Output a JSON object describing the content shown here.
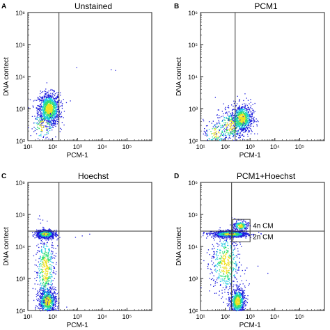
{
  "colors": {
    "low_density": "#1a1adc",
    "mid_density": "#18c8e0",
    "high_density": "#30e070",
    "peak_density": "#f0e020",
    "frame": "#222222",
    "gate_line": "#333333"
  },
  "chart_data": [
    {
      "type": "scatter",
      "panel_label": "A",
      "title": "Unstained",
      "xlabel": "PCM-1",
      "ylabel": "DNA contect",
      "x_scale": "log",
      "y_scale": "log",
      "xlim": [
        10,
        1000000
      ],
      "ylim": [
        100,
        1000000
      ],
      "xticks": [
        "10¹",
        "10²",
        "10³",
        "10⁴",
        "10⁵"
      ],
      "yticks": [
        "10²",
        "10³",
        "10⁴",
        "10⁵",
        "10⁶"
      ],
      "gate_x": 180,
      "gate_y": null,
      "populations": [
        {
          "center": [
            70,
            1000
          ],
          "spread": [
            0.22,
            0.25
          ],
          "count": 1100
        },
        {
          "center": [
            40,
            300
          ],
          "spread": [
            0.25,
            0.25
          ],
          "count": 120
        }
      ],
      "sparse_points": [
        [
          500,
          1800
        ],
        [
          900,
          20000
        ],
        [
          22000,
          17000
        ],
        [
          33000,
          16000
        ]
      ],
      "annotations": []
    },
    {
      "type": "scatter",
      "panel_label": "B",
      "title": "PCM1",
      "xlabel": "PCM-1",
      "ylabel": "DNA contect",
      "x_scale": "log",
      "y_scale": "log",
      "xlim": [
        10,
        1000000
      ],
      "ylim": [
        100,
        1000000
      ],
      "xticks": [
        "10¹",
        "10²",
        "10³",
        "10⁴",
        "10⁵"
      ],
      "yticks": [
        "10²",
        "10³",
        "10⁴",
        "10⁵",
        "10⁶"
      ],
      "gate_x": 250,
      "gate_y": null,
      "populations": [
        {
          "center": [
            450,
            500
          ],
          "spread": [
            0.22,
            0.22
          ],
          "count": 800
        },
        {
          "center": [
            150,
            300
          ],
          "spread": [
            0.3,
            0.25
          ],
          "count": 250
        },
        {
          "center": [
            40,
            180
          ],
          "spread": [
            0.25,
            0.2
          ],
          "count": 120
        }
      ],
      "sparse_points": [
        [
          300,
          2500
        ],
        [
          600,
          3000
        ],
        [
          1500,
          1500
        ]
      ],
      "annotations": []
    },
    {
      "type": "scatter",
      "panel_label": "C",
      "title": "Hoechst",
      "xlabel": "PCM-1",
      "ylabel": "DNA contect",
      "x_scale": "log",
      "y_scale": "log",
      "xlim": [
        10,
        1000000
      ],
      "ylim": [
        100,
        1000000
      ],
      "xticks": [
        "10¹",
        "10²",
        "10³",
        "10⁴",
        "10⁵"
      ],
      "yticks": [
        "10²",
        "10³",
        "10⁴",
        "10⁵",
        "10⁶"
      ],
      "gate_x": 180,
      "gate_y": 30000,
      "populations": [
        {
          "center": [
            50,
            25000
          ],
          "spread": [
            0.18,
            0.06
          ],
          "count": 900
        },
        {
          "center": [
            60,
            200
          ],
          "spread": [
            0.18,
            0.2
          ],
          "count": 700
        },
        {
          "center": [
            50,
            2000
          ],
          "spread": [
            0.2,
            0.55
          ],
          "count": 500
        }
      ],
      "sparse_points": [
        [
          800,
          20000
        ],
        [
          1500,
          22000
        ],
        [
          3000,
          25000
        ]
      ],
      "annotations": []
    },
    {
      "type": "scatter",
      "panel_label": "D",
      "title": "PCM1+Hoechst",
      "xlabel": "PCM-1",
      "ylabel": "DNA contect",
      "x_scale": "log",
      "y_scale": "log",
      "xlim": [
        10,
        1000000
      ],
      "ylim": [
        100,
        1000000
      ],
      "xticks": [
        "10¹",
        "10²",
        "10³",
        "10⁴",
        "10⁵"
      ],
      "yticks": [
        "10²",
        "10³",
        "10⁴",
        "10⁵",
        "10⁶"
      ],
      "gate_x": 180,
      "gate_y": 30000,
      "populations": [
        {
          "center": [
            150,
            25000
          ],
          "spread": [
            0.35,
            0.05
          ],
          "count": 1000
        },
        {
          "center": [
            400,
            45000
          ],
          "spread": [
            0.15,
            0.08
          ],
          "count": 200
        },
        {
          "center": [
            300,
            200
          ],
          "spread": [
            0.15,
            0.2
          ],
          "count": 700
        },
        {
          "center": [
            100,
            3000
          ],
          "spread": [
            0.3,
            0.5
          ],
          "count": 500
        }
      ],
      "sparse_points": [
        [
          2000,
          2500
        ],
        [
          5000,
          1500
        ],
        [
          900,
          700
        ]
      ],
      "annotations": [
        {
          "text": "4n CM",
          "box_x": [
            200,
            1000
          ],
          "box_y": [
            30000,
            70000
          ]
        },
        {
          "text": "2n CM",
          "box_x": [
            200,
            1000
          ],
          "box_y": [
            14000,
            30000
          ]
        }
      ]
    }
  ]
}
